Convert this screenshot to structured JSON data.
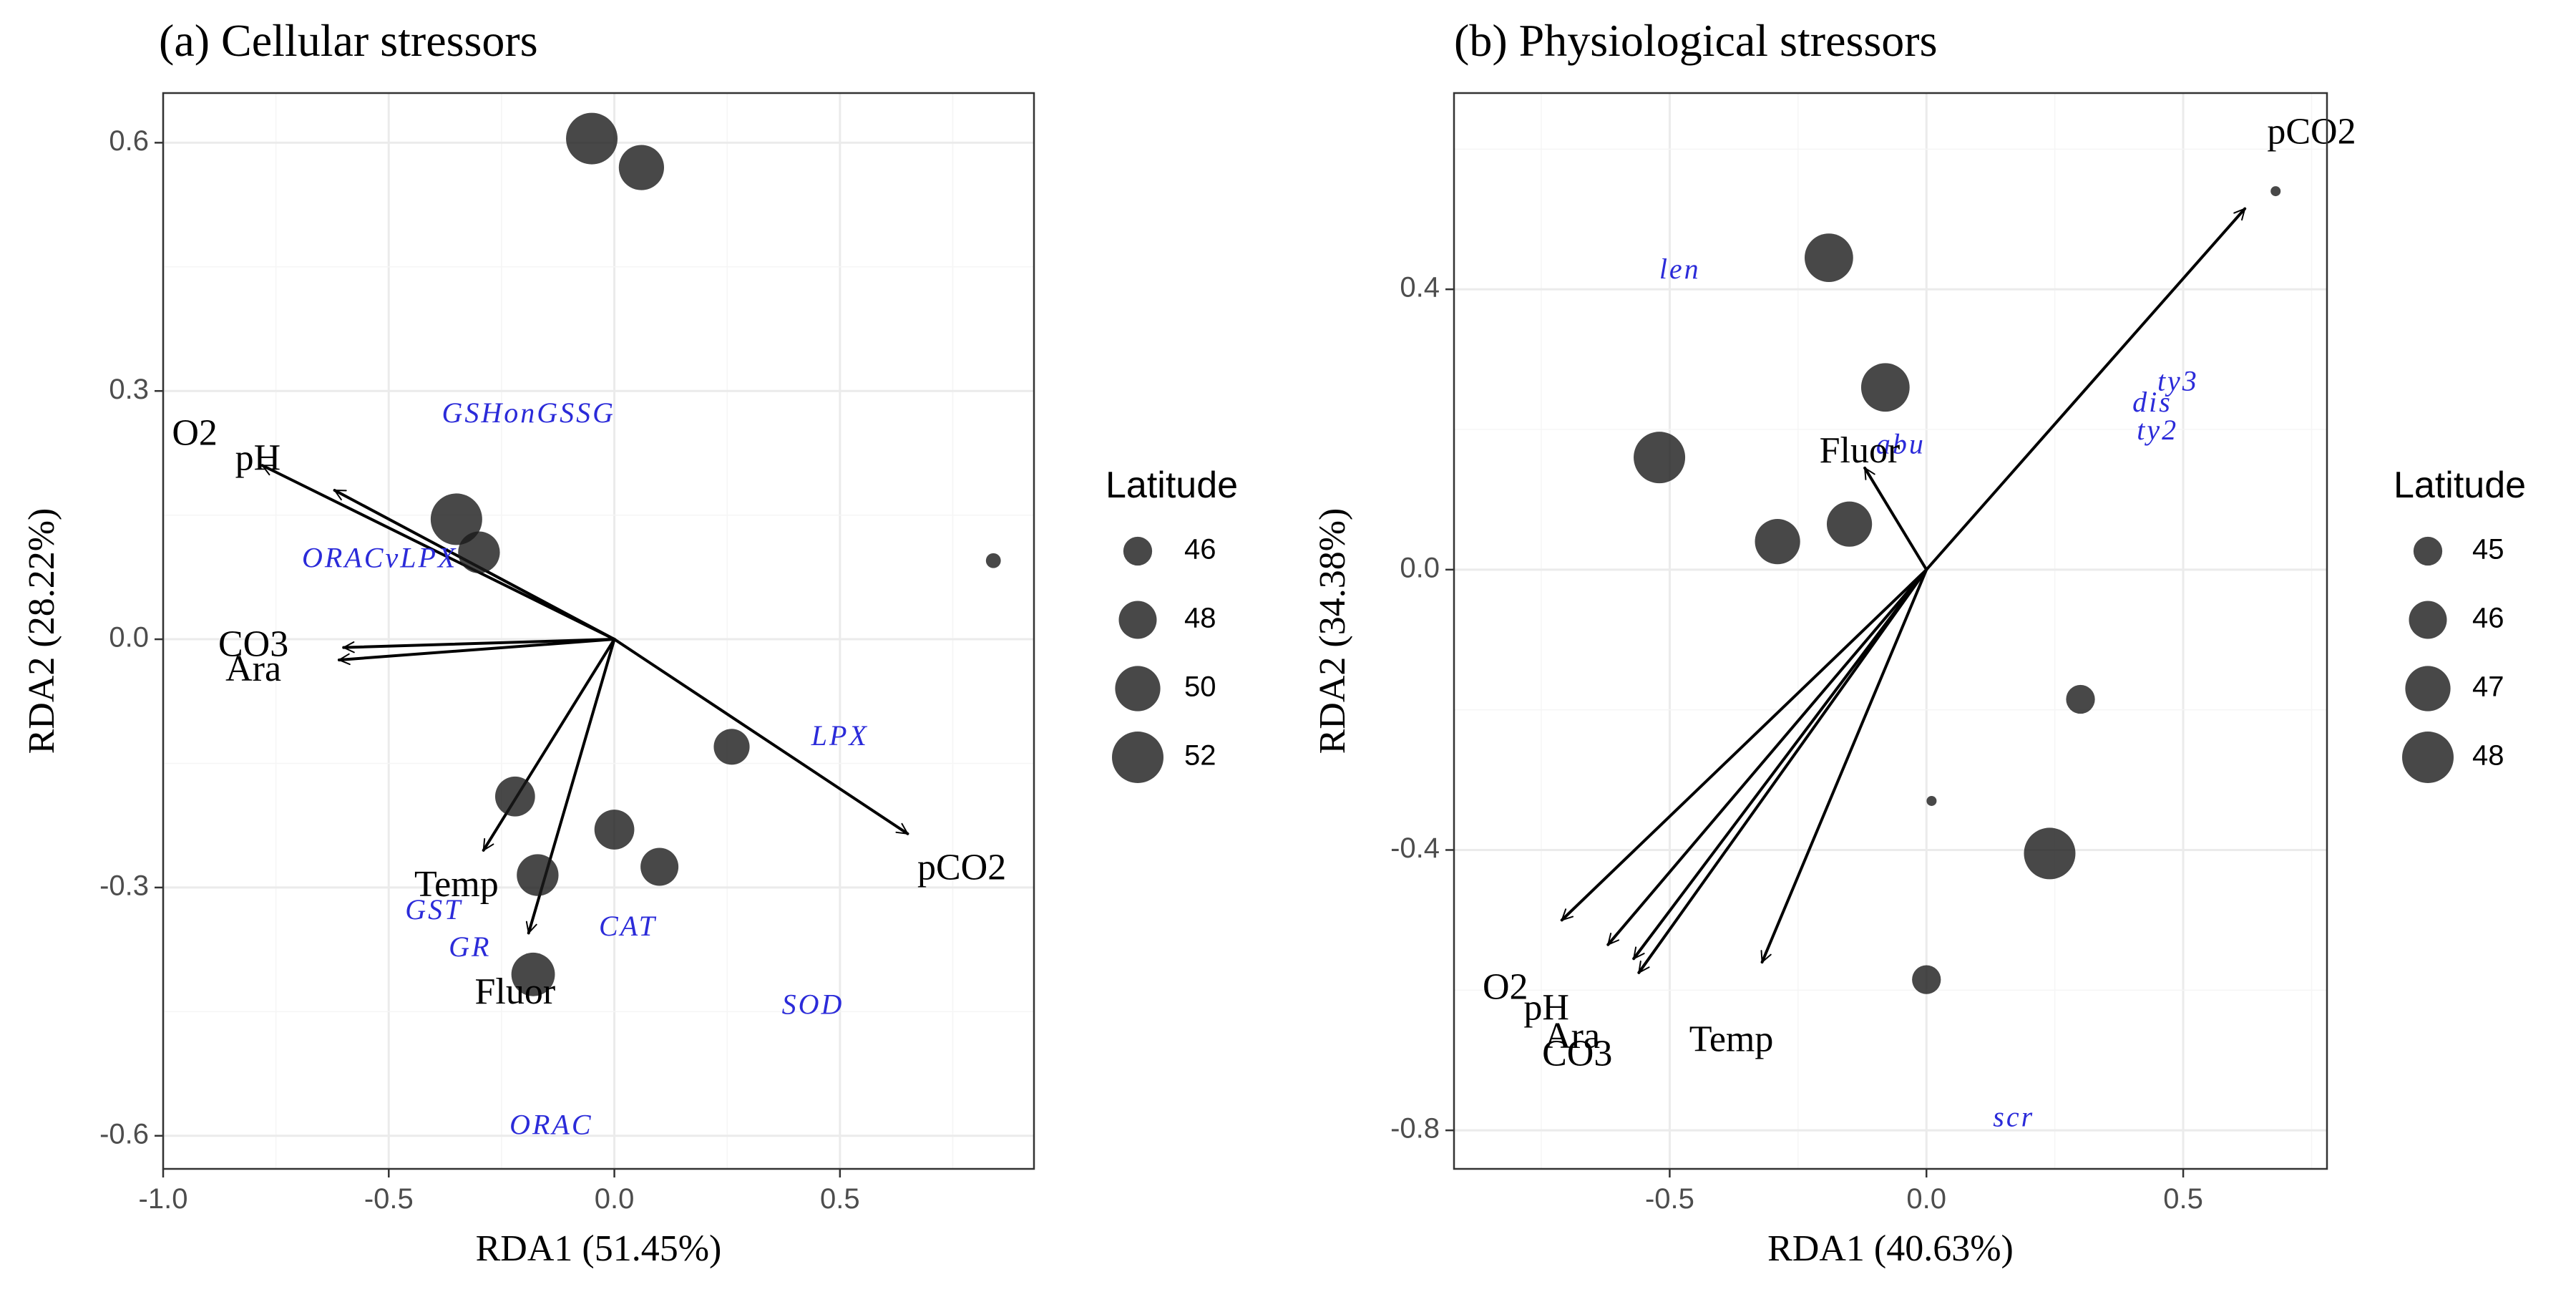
{
  "colors": {
    "point": "#1a1a1a",
    "response_label": "#2b2bd9",
    "arrow": "#000000",
    "grid": "#ebebeb",
    "border": "#333333"
  },
  "chart_data": [
    {
      "type": "scatter",
      "title": "(a) Cellular stressors",
      "xlabel": "RDA1 (51.45%)",
      "ylabel": "RDA2 (28.22%)",
      "xlim": [
        -1.0,
        0.93
      ],
      "ylim": [
        -0.64,
        0.66
      ],
      "xticks": [
        -1.0,
        -0.5,
        0.0,
        0.5
      ],
      "xtick_labels": [
        "-1.0",
        "-0.5",
        "0.0",
        "0.5"
      ],
      "yticks": [
        -0.6,
        -0.3,
        0.0,
        0.3,
        0.6
      ],
      "ytick_labels": [
        "-0.6",
        "-0.3",
        "0.0",
        "0.3",
        "0.6"
      ],
      "grid": true,
      "legend": {
        "title": "Latitude",
        "placement": "right",
        "entries": [
          {
            "label": "46",
            "value": 46
          },
          {
            "label": "48",
            "value": 48
          },
          {
            "label": "50",
            "value": 50
          },
          {
            "label": "52",
            "value": 52
          }
        ]
      },
      "sites": [
        {
          "x": -0.05,
          "y": 0.605,
          "latitude": 53
        },
        {
          "x": 0.06,
          "y": 0.57,
          "latitude": 50
        },
        {
          "x": -0.35,
          "y": 0.145,
          "latitude": 52
        },
        {
          "x": -0.3,
          "y": 0.105,
          "latitude": 49
        },
        {
          "x": 0.84,
          "y": 0.095,
          "latitude": 44
        },
        {
          "x": 0.26,
          "y": -0.13,
          "latitude": 47.5
        },
        {
          "x": -0.22,
          "y": -0.19,
          "latitude": 48.5
        },
        {
          "x": 0.0,
          "y": -0.23,
          "latitude": 48.5
        },
        {
          "x": 0.1,
          "y": -0.275,
          "latitude": 48
        },
        {
          "x": -0.17,
          "y": -0.285,
          "latitude": 49
        },
        {
          "x": -0.18,
          "y": -0.405,
          "latitude": 49.5
        }
      ],
      "env_vectors": [
        {
          "label": "O2",
          "x": -0.62,
          "y": 0.18,
          "lx": -0.93,
          "ly": 0.245
        },
        {
          "label": "pH",
          "x": -0.78,
          "y": 0.21,
          "lx": -0.79,
          "ly": 0.215
        },
        {
          "label": "CO3",
          "x": -0.6,
          "y": -0.01,
          "lx": -0.8,
          "ly": -0.01
        },
        {
          "label": "Ara",
          "x": -0.61,
          "y": -0.025,
          "lx": -0.8,
          "ly": -0.04
        },
        {
          "label": "pCO2",
          "x": 0.65,
          "y": -0.235,
          "lx": 0.77,
          "ly": -0.28
        },
        {
          "label": "Temp",
          "x": -0.29,
          "y": -0.255,
          "lx": -0.35,
          "ly": -0.3
        },
        {
          "label": "Fluor",
          "x": -0.19,
          "y": -0.355,
          "lx": -0.22,
          "ly": -0.43
        }
      ],
      "response_labels": [
        {
          "label": "GSHonGSSG",
          "x": -0.19,
          "y": 0.27
        },
        {
          "label": "ORACvLPX",
          "x": -0.52,
          "y": 0.095
        },
        {
          "label": "LPX",
          "x": 0.5,
          "y": -0.12
        },
        {
          "label": "GST",
          "x": -0.4,
          "y": -0.33
        },
        {
          "label": "GR",
          "x": -0.32,
          "y": -0.375
        },
        {
          "label": "CAT",
          "x": 0.03,
          "y": -0.35
        },
        {
          "label": "SOD",
          "x": 0.44,
          "y": -0.445
        },
        {
          "label": "ORAC",
          "x": -0.14,
          "y": -0.59
        }
      ]
    },
    {
      "type": "scatter",
      "title": "(b) Physiological stressors",
      "xlabel": "RDA1 (40.63%)",
      "ylabel": "RDA2 (34.38%)",
      "xlim": [
        -0.92,
        0.78
      ],
      "ylim": [
        -0.855,
        0.68
      ],
      "xticks": [
        -0.5,
        0.0,
        0.5
      ],
      "xtick_labels": [
        "-0.5",
        "0.0",
        "0.5"
      ],
      "yticks": [
        -0.8,
        -0.4,
        0.0,
        0.4
      ],
      "ytick_labels": [
        "-0.8",
        "-0.4",
        "0.0",
        "0.4"
      ],
      "grid": true,
      "legend": {
        "title": "Latitude",
        "placement": "right",
        "entries": [
          {
            "label": "45",
            "value": 45
          },
          {
            "label": "46",
            "value": 46
          },
          {
            "label": "47",
            "value": 47
          },
          {
            "label": "48",
            "value": 48
          }
        ]
      },
      "sites": [
        {
          "x": 0.68,
          "y": 0.54,
          "latitude": 43.5
        },
        {
          "x": -0.19,
          "y": 0.445,
          "latitude": 47.5
        },
        {
          "x": -0.08,
          "y": 0.26,
          "latitude": 47.5
        },
        {
          "x": -0.52,
          "y": 0.16,
          "latitude": 48
        },
        {
          "x": -0.15,
          "y": 0.065,
          "latitude": 47
        },
        {
          "x": -0.29,
          "y": 0.04,
          "latitude": 47
        },
        {
          "x": 0.3,
          "y": -0.185,
          "latitude": 45
        },
        {
          "x": 0.01,
          "y": -0.33,
          "latitude": 43.5
        },
        {
          "x": 0.24,
          "y": -0.405,
          "latitude": 48
        },
        {
          "x": 0.0,
          "y": -0.585,
          "latitude": 45
        }
      ],
      "env_vectors": [
        {
          "label": "pCO2",
          "x": 0.62,
          "y": 0.515,
          "lx": 0.75,
          "ly": 0.62
        },
        {
          "label": "Fluor",
          "x": -0.12,
          "y": 0.145,
          "lx": -0.13,
          "ly": 0.165
        },
        {
          "label": "O2",
          "x": -0.71,
          "y": -0.5,
          "lx": -0.82,
          "ly": -0.6
        },
        {
          "label": "pH",
          "x": -0.62,
          "y": -0.535,
          "lx": -0.74,
          "ly": -0.63
        },
        {
          "label": "Ara",
          "x": -0.57,
          "y": -0.555,
          "lx": -0.69,
          "ly": -0.67
        },
        {
          "label": "CO3",
          "x": -0.56,
          "y": -0.575,
          "lx": -0.68,
          "ly": -0.695
        },
        {
          "label": "Temp",
          "x": -0.32,
          "y": -0.56,
          "lx": -0.38,
          "ly": -0.675
        }
      ],
      "response_labels": [
        {
          "label": "len",
          "x": -0.48,
          "y": 0.425
        },
        {
          "label": "ty3",
          "x": 0.49,
          "y": 0.265
        },
        {
          "label": "dis",
          "x": 0.44,
          "y": 0.235
        },
        {
          "label": "ty2",
          "x": 0.45,
          "y": 0.195
        },
        {
          "label": "abu",
          "x": -0.05,
          "y": 0.175
        },
        {
          "label": "scr",
          "x": 0.17,
          "y": -0.785
        }
      ]
    }
  ]
}
